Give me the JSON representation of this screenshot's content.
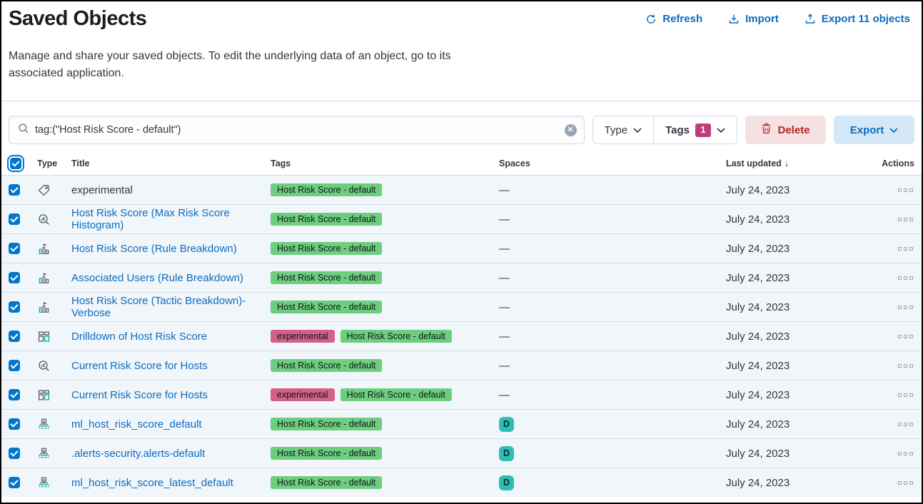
{
  "page": {
    "title": "Saved Objects",
    "description": "Manage and share your saved objects. To edit the underlying data of an object, go to its associated application."
  },
  "header_actions": {
    "refresh": {
      "label": "Refresh",
      "icon": "refresh-icon"
    },
    "import": {
      "label": "Import",
      "icon": "import-icon"
    },
    "export": {
      "label": "Export 11 objects",
      "icon": "export-icon"
    }
  },
  "toolbar": {
    "search_value": "tag:(\"Host Risk Score - default\")",
    "type_filter_label": "Type",
    "tags_filter_label": "Tags",
    "tags_filter_count": "1",
    "delete_label": "Delete",
    "export_label": "Export"
  },
  "table": {
    "columns": {
      "type": "Type",
      "title": "Title",
      "tags": "Tags",
      "spaces": "Spaces",
      "last_updated": "Last updated",
      "actions": "Actions"
    },
    "sort": {
      "column": "Last updated",
      "direction": "desc"
    },
    "tag_colors": {
      "Host Risk Score - default": "#6dce7e",
      "experimental": "#d36086"
    },
    "rows": [
      {
        "checked": true,
        "type_icon": "tag-icon",
        "title": "experimental",
        "is_link": false,
        "tags": [
          "Host Risk Score - default"
        ],
        "space": "—",
        "updated": "July 24, 2023"
      },
      {
        "checked": true,
        "type_icon": "lens-icon",
        "title": "Host Risk Score (Max Risk Score Histogram)",
        "is_link": true,
        "tags": [
          "Host Risk Score - default"
        ],
        "space": "—",
        "updated": "July 24, 2023"
      },
      {
        "checked": true,
        "type_icon": "visualization-icon",
        "title": "Host Risk Score (Rule Breakdown)",
        "is_link": true,
        "tags": [
          "Host Risk Score - default"
        ],
        "space": "—",
        "updated": "July 24, 2023"
      },
      {
        "checked": true,
        "type_icon": "visualization-icon",
        "title": "Associated Users (Rule Breakdown)",
        "is_link": true,
        "tags": [
          "Host Risk Score - default"
        ],
        "space": "—",
        "updated": "July 24, 2023"
      },
      {
        "checked": true,
        "type_icon": "visualization-icon",
        "title": "Host Risk Score (Tactic Breakdown)- Verbose",
        "is_link": true,
        "tags": [
          "Host Risk Score - default"
        ],
        "space": "—",
        "updated": "July 24, 2023"
      },
      {
        "checked": true,
        "type_icon": "dashboard-icon",
        "title": "Drilldown of Host Risk Score",
        "is_link": true,
        "tags": [
          "experimental",
          "Host Risk Score - default"
        ],
        "space": "—",
        "updated": "July 24, 2023"
      },
      {
        "checked": true,
        "type_icon": "lens-icon",
        "title": "Current Risk Score for Hosts",
        "is_link": true,
        "tags": [
          "Host Risk Score - default"
        ],
        "space": "—",
        "updated": "July 24, 2023"
      },
      {
        "checked": true,
        "type_icon": "dashboard-icon",
        "title": "Current Risk Score for Hosts",
        "is_link": true,
        "tags": [
          "experimental",
          "Host Risk Score - default"
        ],
        "space": "—",
        "updated": "July 24, 2023"
      },
      {
        "checked": true,
        "type_icon": "index-pattern-icon",
        "title": "ml_host_risk_score_default",
        "is_link": true,
        "tags": [
          "Host Risk Score - default"
        ],
        "space": "D",
        "updated": "July 24, 2023"
      },
      {
        "checked": true,
        "type_icon": "index-pattern-icon",
        "title": ".alerts-security.alerts-default",
        "is_link": true,
        "tags": [
          "Host Risk Score - default"
        ],
        "space": "D",
        "updated": "July 24, 2023"
      },
      {
        "checked": true,
        "type_icon": "index-pattern-icon",
        "title": "ml_host_risk_score_latest_default",
        "is_link": true,
        "tags": [
          "Host Risk Score - default"
        ],
        "space": "D",
        "updated": "July 24, 2023"
      }
    ]
  },
  "colors": {
    "primary_blue": "#0d6cbd",
    "checkbox_blue": "#0077cc",
    "tag_green": "#6dce7e",
    "tag_pink": "#d36086",
    "space_teal": "#2fbeb4",
    "filter_count_badge": "#c13c7c",
    "delete_bg": "#f5e0e2",
    "delete_text": "#b4251e",
    "export_bg": "#d5e8f8",
    "row_bg": "#f1f6fb",
    "separator": "#d6dce6"
  }
}
